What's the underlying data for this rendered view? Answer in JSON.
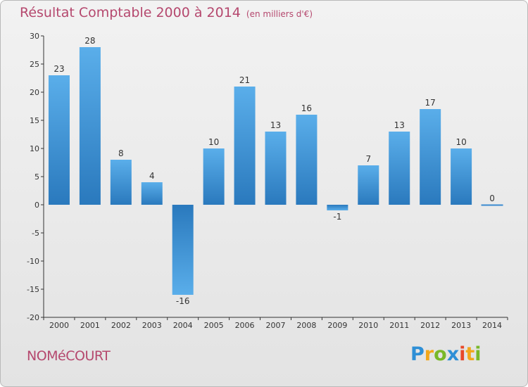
{
  "title": "Résultat Comptable 2000 à 2014",
  "subtitle": "(en milliers d'€)",
  "commune": "NOMéCOURT",
  "logo": {
    "letters": [
      "P",
      "r",
      "o",
      "x",
      "i",
      "t",
      "i"
    ],
    "colors": [
      "#2e8fd6",
      "#f2a71b",
      "#79b829",
      "#2e8fd6",
      "#e8492a",
      "#f2a71b",
      "#79b829"
    ]
  },
  "colors": {
    "bar_light": "#5aaeea",
    "bar_dark": "#2a79bd",
    "title": "#b5486e"
  },
  "chart_data": {
    "type": "bar",
    "title": "Résultat Comptable 2000 à 2014",
    "ylabel": "en milliers d'€",
    "xlabel": "",
    "categories": [
      "2000",
      "2001",
      "2002",
      "2003",
      "2004",
      "2005",
      "2006",
      "2007",
      "2008",
      "2009",
      "2010",
      "2011",
      "2012",
      "2013",
      "2014"
    ],
    "values": [
      23,
      28,
      8,
      4,
      -16,
      10,
      21,
      13,
      16,
      -1,
      7,
      13,
      17,
      10,
      0
    ],
    "labels": [
      "23",
      "28",
      "8",
      "4",
      "-16",
      "10",
      "21",
      "13",
      "16",
      "-1",
      "7",
      "13",
      "17",
      "10",
      "0"
    ],
    "ylim": [
      -20,
      30
    ],
    "yticks": [
      -20,
      -15,
      -10,
      -5,
      0,
      5,
      10,
      15,
      20,
      25,
      30
    ],
    "grid": false
  }
}
